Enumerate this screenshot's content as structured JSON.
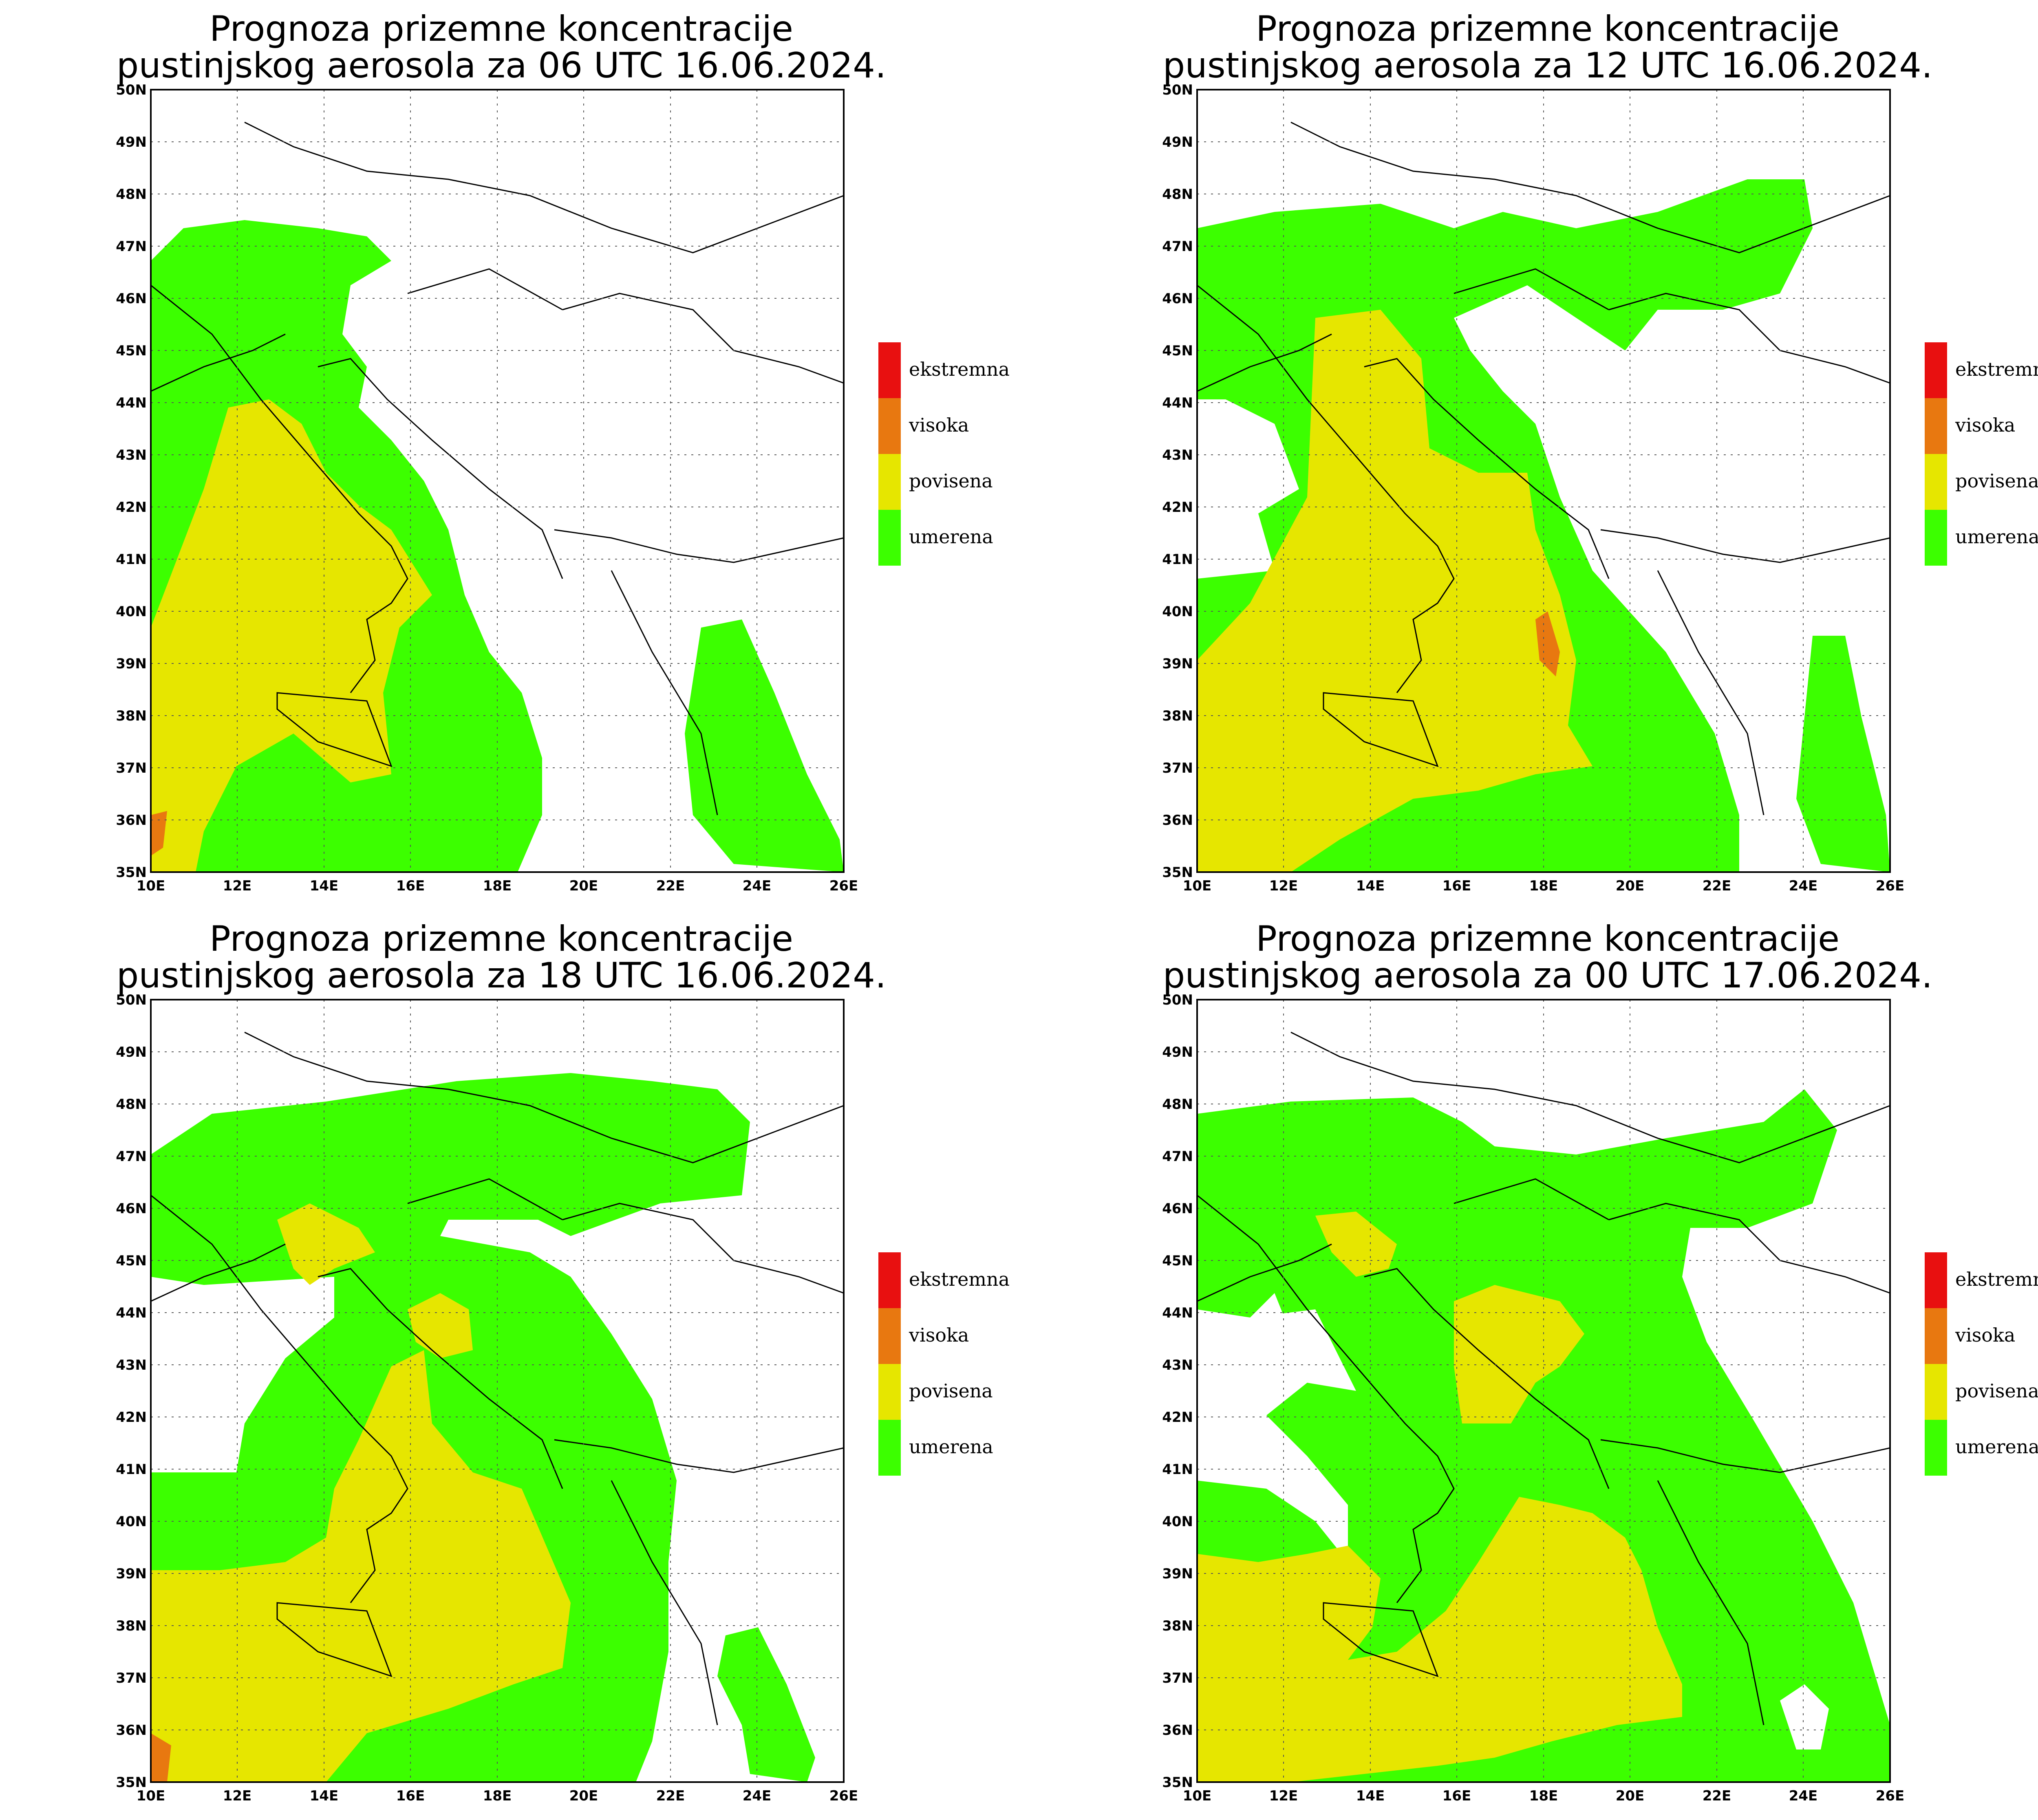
{
  "title_line1": "Prognoza prizemne koncentracije",
  "panels": [
    {
      "title_line2": "pustinjskog aerosola za 06 UTC 16.06.2024."
    },
    {
      "title_line2": "pustinjskog aerosola za 12 UTC 16.06.2024."
    },
    {
      "title_line2": "pustinjskog aerosola za 18 UTC 16.06.2024."
    },
    {
      "title_line2": "pustinjskog aerosola za 00 UTC 17.06.2024."
    }
  ],
  "lat_labels": [
    "50N",
    "49N",
    "48N",
    "47N",
    "46N",
    "45N",
    "44N",
    "43N",
    "42N",
    "41N",
    "40N",
    "39N",
    "38N",
    "37N",
    "36N",
    "35N"
  ],
  "lon_labels": [
    "10E",
    "12E",
    "14E",
    "16E",
    "18E",
    "20E",
    "22E",
    "24E",
    "26E"
  ],
  "legend": [
    {
      "label": "ekstremna",
      "color": "#e81010"
    },
    {
      "label": "visoka",
      "color": "#e87810"
    },
    {
      "label": "povisena",
      "color": "#e6e600"
    },
    {
      "label": "umerena",
      "color": "#3cff00"
    }
  ],
  "colors": {
    "umerena": "#3cff00",
    "povisena": "#e6e600",
    "visoka": "#e87810",
    "ekstremna": "#e81010"
  }
}
